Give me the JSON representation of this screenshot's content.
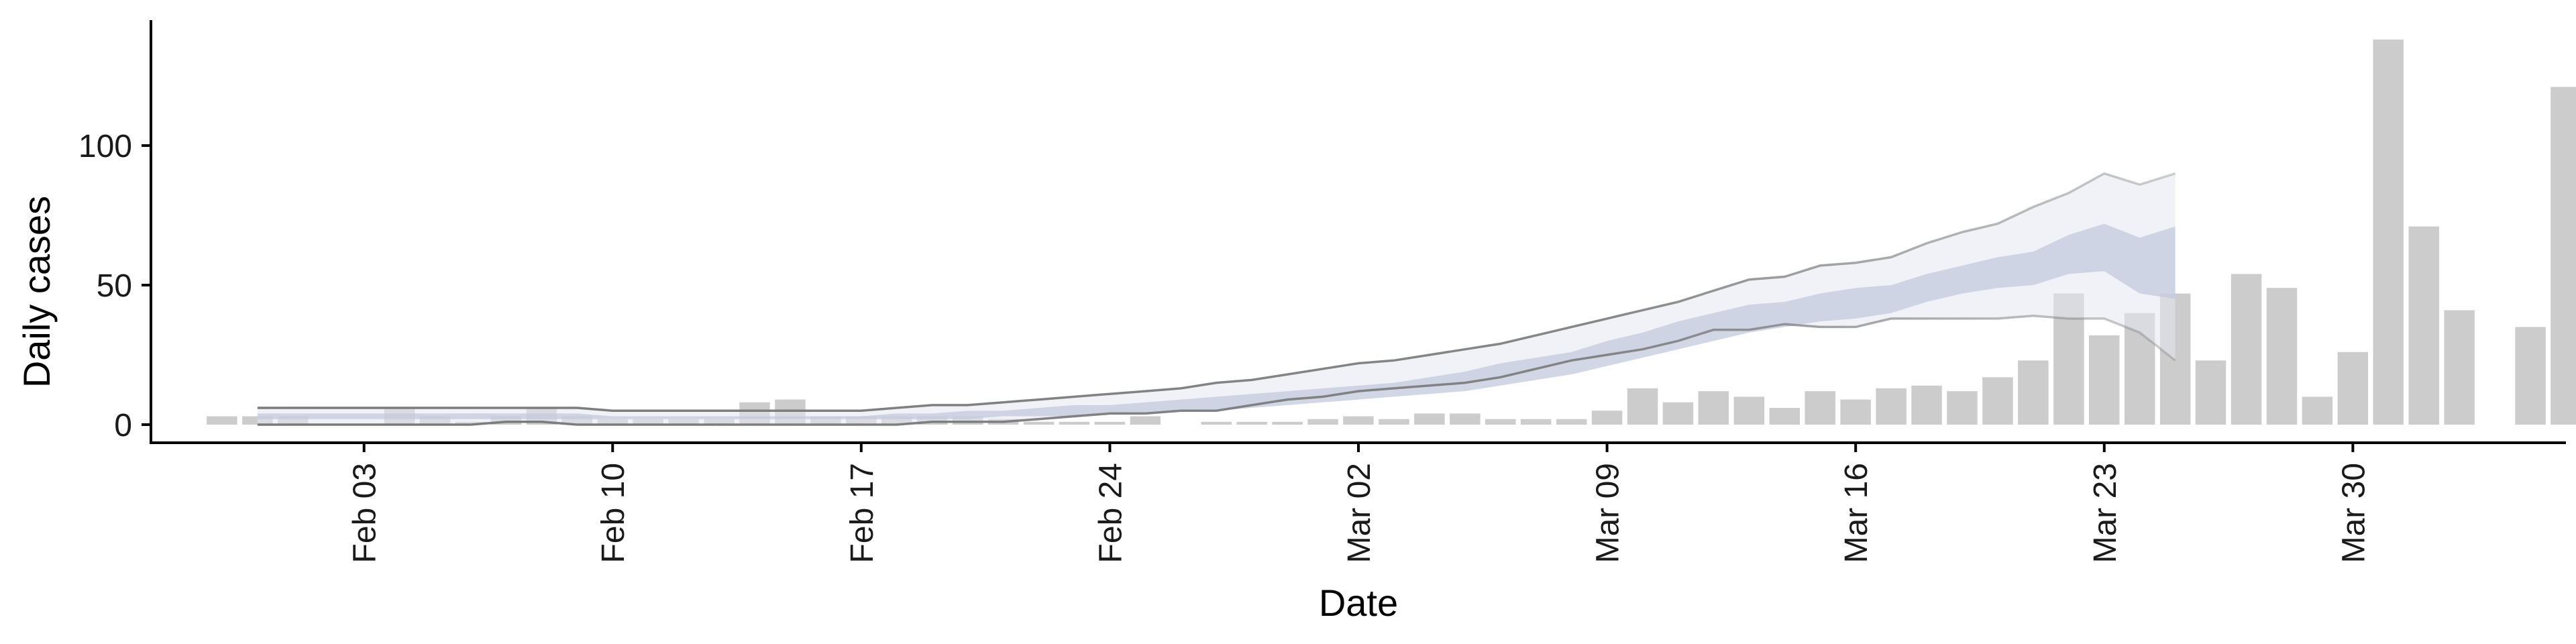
{
  "chart_data": {
    "type": "bar",
    "title": "",
    "xlabel": "Date",
    "ylabel": "Daily cases",
    "x_start": "2020-01-30",
    "x_range": [
      "2020-01-28",
      "2020-04-05"
    ],
    "ylim": [
      -8,
      143
    ],
    "yticks": [
      0,
      50,
      100
    ],
    "xticks": [
      {
        "date": "2020-02-03",
        "label": "Feb 03"
      },
      {
        "date": "2020-02-10",
        "label": "Feb 10"
      },
      {
        "date": "2020-02-17",
        "label": "Feb 17"
      },
      {
        "date": "2020-02-24",
        "label": "Feb 24"
      },
      {
        "date": "2020-03-02",
        "label": "Mar 02"
      },
      {
        "date": "2020-03-09",
        "label": "Mar 09"
      },
      {
        "date": "2020-03-16",
        "label": "Mar 16"
      },
      {
        "date": "2020-03-23",
        "label": "Mar 23"
      },
      {
        "date": "2020-03-30",
        "label": "Mar 30"
      }
    ],
    "grid": false,
    "legend": "none",
    "colors": {
      "bars": "#cccccc",
      "band_outer": "#e6e8f2",
      "band_inner": "#c3cade",
      "band_line": "#7a7a7a"
    },
    "cases": [
      3,
      3,
      3,
      0,
      0,
      6,
      3,
      1,
      3,
      6,
      3,
      2,
      2,
      2,
      2,
      8,
      9,
      3,
      3,
      3,
      3,
      3,
      2,
      1,
      1,
      1,
      3,
      0,
      1,
      1,
      1,
      2,
      3,
      2,
      4,
      4,
      2,
      2,
      2,
      5,
      13,
      8,
      12,
      10,
      6,
      12,
      9,
      13,
      14,
      12,
      17,
      23,
      47,
      32,
      40,
      47,
      23,
      54,
      49,
      10,
      26,
      138,
      71,
      41,
      0,
      35,
      121
    ],
    "nowcast_start": "2020-01-31",
    "band_upper_outer": [
      6,
      6,
      6,
      6,
      6,
      6,
      6,
      6,
      6,
      6,
      5,
      5,
      5,
      5,
      5,
      5,
      5,
      5,
      6,
      7,
      7,
      8,
      9,
      10,
      11,
      12,
      13,
      15,
      16,
      18,
      20,
      22,
      23,
      25,
      27,
      29,
      32,
      35,
      38,
      41,
      44,
      48,
      52,
      53,
      57,
      58,
      60,
      65,
      69,
      72,
      78,
      83,
      90,
      86,
      90
    ],
    "band_upper_inner": [
      4,
      4,
      4,
      4,
      4,
      4,
      4,
      4,
      4,
      4,
      3,
      3,
      3,
      3,
      3,
      3,
      3,
      3,
      4,
      4,
      5,
      5,
      6,
      7,
      7,
      8,
      9,
      10,
      11,
      12,
      13,
      14,
      15,
      17,
      19,
      22,
      24,
      26,
      30,
      33,
      37,
      40,
      43,
      44,
      47,
      49,
      50,
      54,
      57,
      60,
      62,
      68,
      72,
      67,
      71
    ],
    "band_lower_inner": [
      2,
      2,
      2,
      2,
      2,
      2,
      2,
      2,
      2,
      2,
      2,
      2,
      2,
      2,
      2,
      2,
      2,
      2,
      2,
      2,
      2,
      3,
      3,
      3,
      4,
      4,
      5,
      5,
      6,
      7,
      8,
      9,
      10,
      11,
      12,
      14,
      16,
      18,
      21,
      24,
      27,
      30,
      33,
      35,
      37,
      38,
      40,
      44,
      47,
      49,
      50,
      54,
      55,
      47,
      45
    ],
    "band_lower_outer": [
      0,
      0,
      0,
      0,
      0,
      0,
      0,
      1,
      1,
      0,
      0,
      0,
      0,
      0,
      0,
      0,
      0,
      0,
      0,
      1,
      1,
      1,
      2,
      3,
      4,
      4,
      5,
      5,
      7,
      9,
      10,
      12,
      13,
      14,
      15,
      17,
      20,
      23,
      25,
      27,
      30,
      34,
      34,
      36,
      35,
      35,
      38,
      38,
      38,
      38,
      39,
      38,
      38,
      33,
      23
    ]
  }
}
